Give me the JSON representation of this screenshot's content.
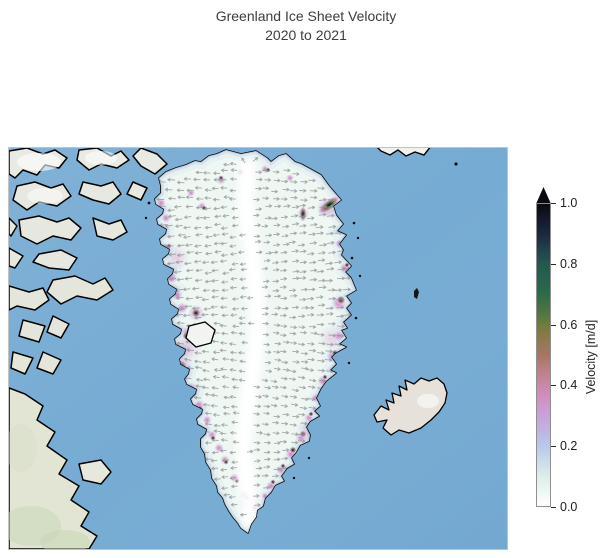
{
  "title": {
    "line1": "Greenland Ice Sheet Velocity",
    "line2": "2020 to 2021"
  },
  "colorbar": {
    "label": "Velocity [m/d]",
    "ticks": [
      "1.0",
      "0.8",
      "0.6",
      "0.4",
      "0.2",
      "0.0"
    ],
    "tick_values": [
      1.0,
      0.8,
      0.6,
      0.4,
      0.2,
      0.0
    ],
    "range": [
      0.0,
      1.0
    ],
    "unit": "m/d",
    "extend": "max"
  },
  "map": {
    "ocean_color": "#76abd3",
    "land_color": "#e7e8e1",
    "tundra_color": "#e2e5d3",
    "ice_color": "#fbfdfc",
    "coastline_color": "#000000",
    "quiver_color": "#949494"
  },
  "chart_data": {
    "type": "map",
    "title": "Greenland Ice Sheet Velocity",
    "subtitle": "2020 to 2021",
    "variable": "Velocity",
    "units": "m/d",
    "colorbar_range": [
      0.0,
      1.0
    ],
    "colorbar_ticks": [
      0.0,
      0.2,
      0.4,
      0.6,
      0.8,
      1.0
    ],
    "colormap_stops": [
      {
        "value": 0.0,
        "color": "#ffffff"
      },
      {
        "value": 0.1,
        "color": "#d9ecea"
      },
      {
        "value": 0.2,
        "color": "#b9c6e8"
      },
      {
        "value": 0.3,
        "color": "#c9a3dc"
      },
      {
        "value": 0.4,
        "color": "#cb87ab"
      },
      {
        "value": 0.5,
        "color": "#a57663"
      },
      {
        "value": 0.6,
        "color": "#6f7c3a"
      },
      {
        "value": 0.7,
        "color": "#2e6b47"
      },
      {
        "value": 0.8,
        "color": "#24584e"
      },
      {
        "value": 0.9,
        "color": "#1b2840"
      },
      {
        "value": 1.0,
        "color": "#0a0a10"
      }
    ],
    "legend_position": "right",
    "overlay": "gray flow-direction arrows over the ice sheet; fast outlet glaciers appear as dark/green/pink patches along the ice margin"
  }
}
